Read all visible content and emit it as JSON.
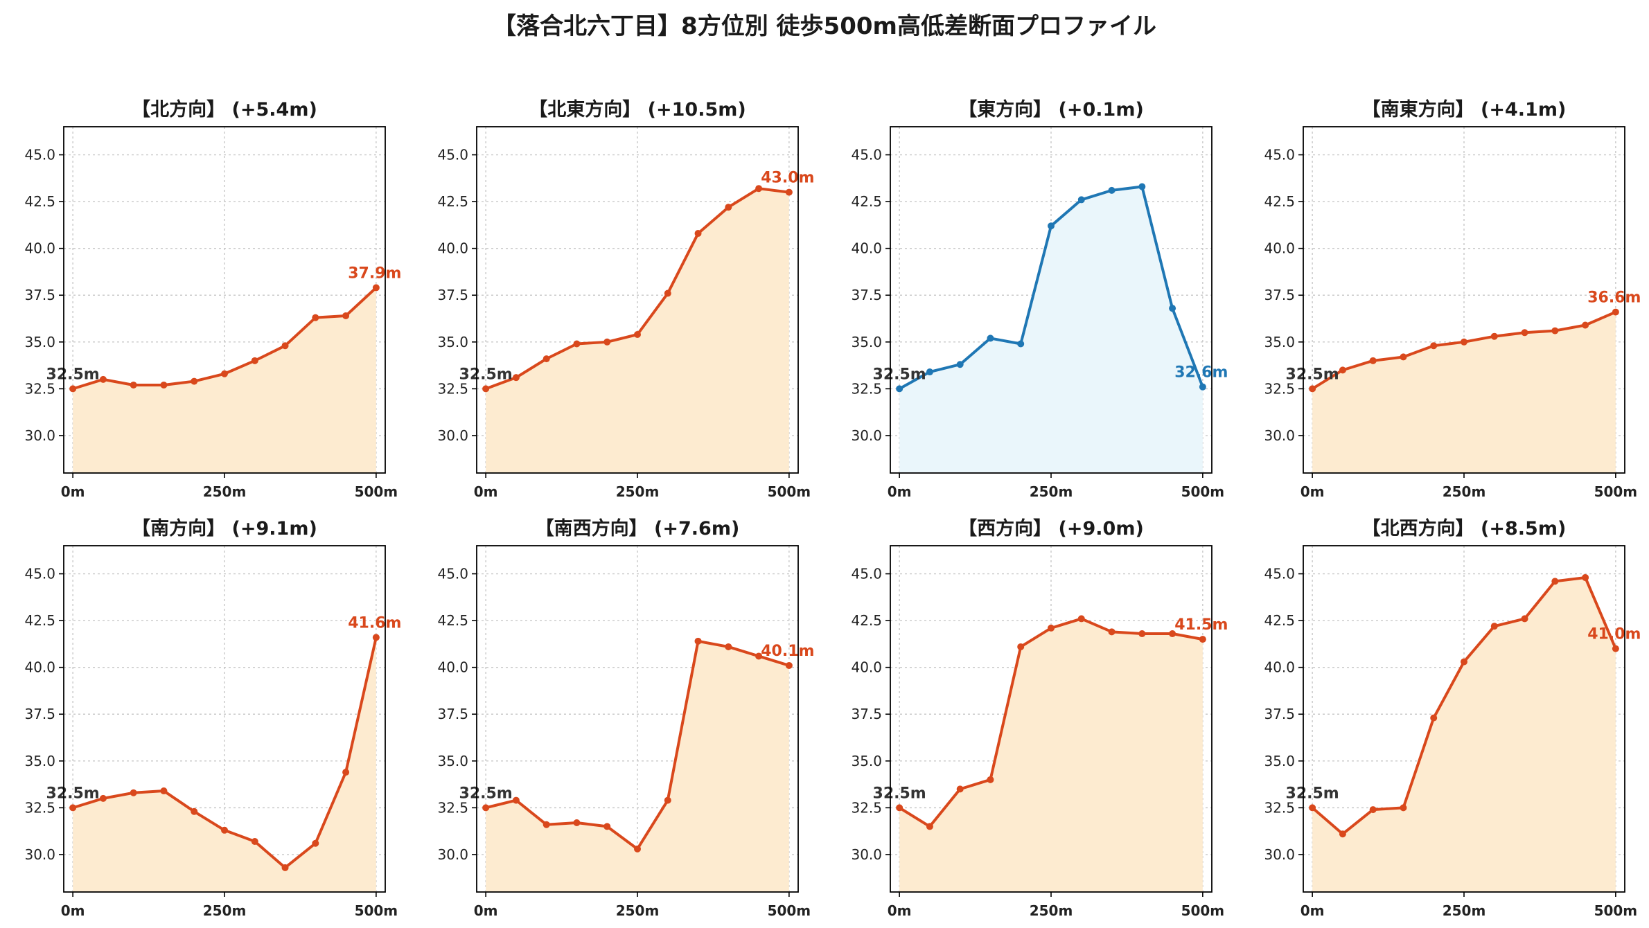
{
  "title": "【落合北六丁目】8方位別 徒歩500m高低差断面プロファイル",
  "colors": {
    "up_line": "#d9481c",
    "up_fill": "#fdebd0",
    "flat_line": "#1f77b4",
    "flat_fill": "#eaf6fb",
    "start_label": "#333333"
  },
  "chart_data": [
    {
      "type": "area",
      "title": "【北方向】 (+5.4m)",
      "x": [
        0,
        50,
        100,
        150,
        200,
        250,
        300,
        350,
        400,
        450,
        500
      ],
      "values": [
        32.5,
        33.0,
        32.7,
        32.7,
        32.9,
        33.3,
        34.0,
        34.8,
        36.3,
        36.4,
        37.9
      ],
      "start_label": "32.5m",
      "end_label": "37.9m",
      "trend": "up",
      "xticks": [
        "0m",
        "250m",
        "500m"
      ],
      "yticks": [
        "30.0",
        "32.5",
        "35.0",
        "37.5",
        "40.0",
        "42.5",
        "45.0"
      ],
      "ylim": [
        28,
        46.5
      ],
      "xlim": [
        -15,
        515
      ],
      "grid": true
    },
    {
      "type": "area",
      "title": "【北東方向】 (+10.5m)",
      "x": [
        0,
        50,
        100,
        150,
        200,
        250,
        300,
        350,
        400,
        450,
        500
      ],
      "values": [
        32.5,
        33.1,
        34.1,
        34.9,
        35.0,
        35.4,
        37.6,
        40.8,
        42.2,
        43.2,
        43.0
      ],
      "start_label": "32.5m",
      "end_label": "43.0m",
      "trend": "up",
      "xticks": [
        "0m",
        "250m",
        "500m"
      ],
      "yticks": [
        "30.0",
        "32.5",
        "35.0",
        "37.5",
        "40.0",
        "42.5",
        "45.0"
      ],
      "ylim": [
        28,
        46.5
      ],
      "xlim": [
        -15,
        515
      ],
      "grid": true
    },
    {
      "type": "area",
      "title": "【東方向】 (+0.1m)",
      "x": [
        0,
        50,
        100,
        150,
        200,
        250,
        300,
        350,
        400,
        450,
        500
      ],
      "values": [
        32.5,
        33.4,
        33.8,
        35.2,
        34.9,
        41.2,
        42.6,
        43.1,
        43.3,
        36.8,
        32.6
      ],
      "start_label": "32.5m",
      "end_label": "32.6m",
      "trend": "flat",
      "xticks": [
        "0m",
        "250m",
        "500m"
      ],
      "yticks": [
        "30.0",
        "32.5",
        "35.0",
        "37.5",
        "40.0",
        "42.5",
        "45.0"
      ],
      "ylim": [
        28,
        46.5
      ],
      "xlim": [
        -15,
        515
      ],
      "grid": true
    },
    {
      "type": "area",
      "title": "【南東方向】 (+4.1m)",
      "x": [
        0,
        50,
        100,
        150,
        200,
        250,
        300,
        350,
        400,
        450,
        500
      ],
      "values": [
        32.5,
        33.5,
        34.0,
        34.2,
        34.8,
        35.0,
        35.3,
        35.5,
        35.6,
        35.9,
        36.6
      ],
      "start_label": "32.5m",
      "end_label": "36.6m",
      "trend": "up",
      "xticks": [
        "0m",
        "250m",
        "500m"
      ],
      "yticks": [
        "30.0",
        "32.5",
        "35.0",
        "37.5",
        "40.0",
        "42.5",
        "45.0"
      ],
      "ylim": [
        28,
        46.5
      ],
      "xlim": [
        -15,
        515
      ],
      "grid": true
    },
    {
      "type": "area",
      "title": "【南方向】 (+9.1m)",
      "x": [
        0,
        50,
        100,
        150,
        200,
        250,
        300,
        350,
        400,
        450,
        500
      ],
      "values": [
        32.5,
        33.0,
        33.3,
        33.4,
        32.3,
        31.3,
        30.7,
        29.3,
        30.6,
        34.4,
        41.6
      ],
      "start_label": "32.5m",
      "end_label": "41.6m",
      "trend": "up",
      "xticks": [
        "0m",
        "250m",
        "500m"
      ],
      "yticks": [
        "30.0",
        "32.5",
        "35.0",
        "37.5",
        "40.0",
        "42.5",
        "45.0"
      ],
      "ylim": [
        28,
        46.5
      ],
      "xlim": [
        -15,
        515
      ],
      "grid": true
    },
    {
      "type": "area",
      "title": "【南西方向】 (+7.6m)",
      "x": [
        0,
        50,
        100,
        150,
        200,
        250,
        300,
        350,
        400,
        450,
        500
      ],
      "values": [
        32.5,
        32.9,
        31.6,
        31.7,
        31.5,
        30.3,
        32.9,
        41.4,
        41.1,
        40.6,
        40.1
      ],
      "start_label": "32.5m",
      "end_label": "40.1m",
      "trend": "up",
      "xticks": [
        "0m",
        "250m",
        "500m"
      ],
      "yticks": [
        "30.0",
        "32.5",
        "35.0",
        "37.5",
        "40.0",
        "42.5",
        "45.0"
      ],
      "ylim": [
        28,
        46.5
      ],
      "xlim": [
        -15,
        515
      ],
      "grid": true
    },
    {
      "type": "area",
      "title": "【西方向】 (+9.0m)",
      "x": [
        0,
        50,
        100,
        150,
        200,
        250,
        300,
        350,
        400,
        450,
        500
      ],
      "values": [
        32.5,
        31.5,
        33.5,
        34.0,
        41.1,
        42.1,
        42.6,
        41.9,
        41.8,
        41.8,
        41.5
      ],
      "start_label": "32.5m",
      "end_label": "41.5m",
      "trend": "up",
      "xticks": [
        "0m",
        "250m",
        "500m"
      ],
      "yticks": [
        "30.0",
        "32.5",
        "35.0",
        "37.5",
        "40.0",
        "42.5",
        "45.0"
      ],
      "ylim": [
        28,
        46.5
      ],
      "xlim": [
        -15,
        515
      ],
      "grid": true
    },
    {
      "type": "area",
      "title": "【北西方向】 (+8.5m)",
      "x": [
        0,
        50,
        100,
        150,
        200,
        250,
        300,
        350,
        400,
        450,
        500
      ],
      "values": [
        32.5,
        31.1,
        32.4,
        32.5,
        37.3,
        40.3,
        42.2,
        42.6,
        44.6,
        44.8,
        41.0
      ],
      "start_label": "32.5m",
      "end_label": "41.0m",
      "trend": "up",
      "xticks": [
        "0m",
        "250m",
        "500m"
      ],
      "yticks": [
        "30.0",
        "32.5",
        "35.0",
        "37.5",
        "40.0",
        "42.5",
        "45.0"
      ],
      "ylim": [
        28,
        46.5
      ],
      "xlim": [
        -15,
        515
      ],
      "grid": true
    }
  ]
}
